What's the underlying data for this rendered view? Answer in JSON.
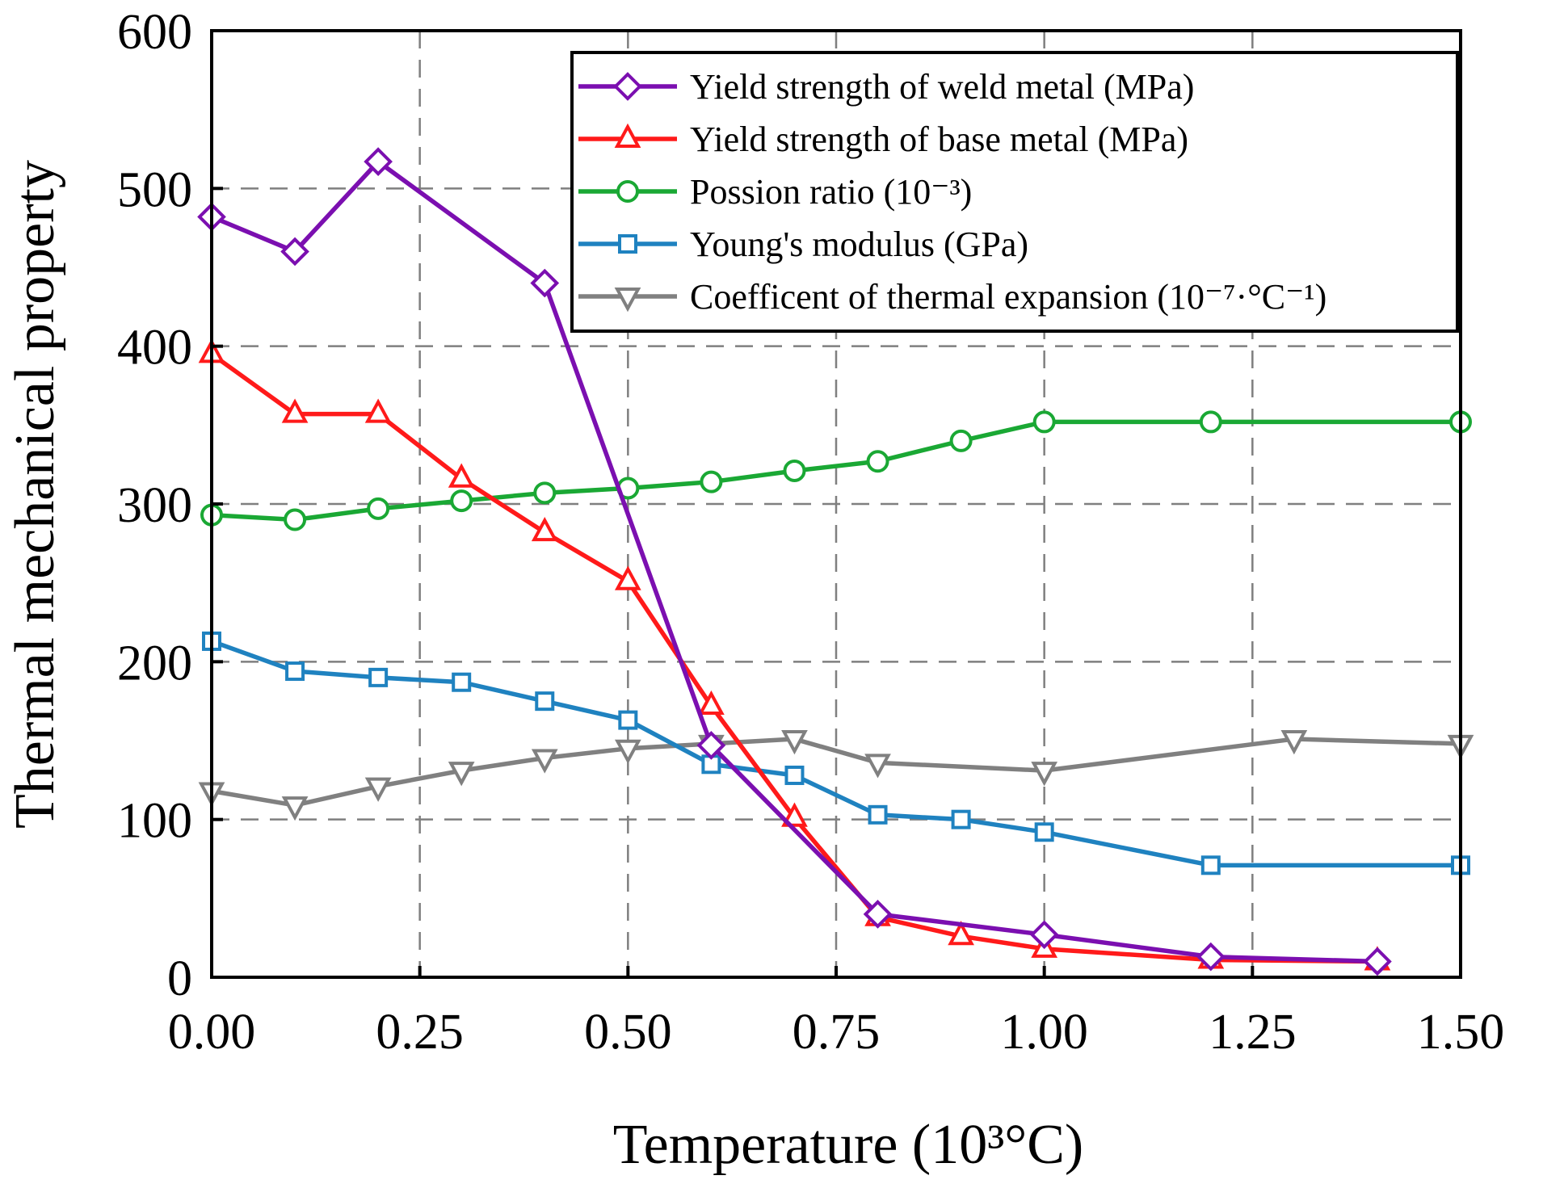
{
  "chart_data": {
    "type": "line",
    "title": "",
    "xlabel": "Temperature (10³°C)",
    "ylabel": "Thermal mechanical property",
    "xlim": [
      0,
      1.5
    ],
    "ylim": [
      0,
      600
    ],
    "xticks": [
      "0.00",
      "0.25",
      "0.50",
      "0.75",
      "1.00",
      "1.25",
      "1.50"
    ],
    "yticks": [
      "0",
      "100",
      "200",
      "300",
      "400",
      "500",
      "600"
    ],
    "grid": true,
    "legend_position": "top-right",
    "series": [
      {
        "name": "Yield strength of weld metal (MPa)",
        "color": "#7b0fb0",
        "marker": "diamond",
        "x": [
          0.0,
          0.1,
          0.2,
          0.4,
          0.6,
          0.8,
          1.0,
          1.2,
          1.4
        ],
        "y": [
          482,
          460,
          517,
          440,
          147,
          40,
          27,
          13,
          10
        ]
      },
      {
        "name": "Yield strength of base metal (MPa)",
        "color": "#ff1a1a",
        "marker": "triangle-up",
        "x": [
          0.0,
          0.1,
          0.2,
          0.3,
          0.4,
          0.5,
          0.6,
          0.7,
          0.8,
          0.9,
          1.0,
          1.2,
          1.4
        ],
        "y": [
          395,
          357,
          357,
          316,
          282,
          251,
          172,
          101,
          38,
          26,
          18,
          11,
          10
        ]
      },
      {
        "name": "Possion ratio (10⁻³)",
        "color": "#1aa834",
        "marker": "circle",
        "x": [
          0.0,
          0.1,
          0.2,
          0.3,
          0.4,
          0.5,
          0.6,
          0.7,
          0.8,
          0.9,
          1.0,
          1.2,
          1.5
        ],
        "y": [
          293,
          290,
          297,
          302,
          307,
          310,
          314,
          321,
          327,
          340,
          352,
          352,
          352
        ]
      },
      {
        "name": "Young's modulus (GPa)",
        "color": "#1f82c0",
        "marker": "square",
        "x": [
          0.0,
          0.1,
          0.2,
          0.3,
          0.4,
          0.5,
          0.6,
          0.7,
          0.8,
          0.9,
          1.0,
          1.2,
          1.5
        ],
        "y": [
          213,
          194,
          190,
          187,
          175,
          163,
          135,
          128,
          103,
          100,
          92,
          71,
          71
        ]
      },
      {
        "name": "Coefficent of thermal expansion (10⁻⁷·°C⁻¹)",
        "color": "#808080",
        "marker": "triangle-down",
        "x": [
          0.0,
          0.1,
          0.2,
          0.3,
          0.4,
          0.5,
          0.6,
          0.7,
          0.8,
          1.0,
          1.3,
          1.5
        ],
        "y": [
          118,
          109,
          121,
          131,
          139,
          145,
          148,
          151,
          136,
          131,
          151,
          148
        ]
      }
    ]
  }
}
